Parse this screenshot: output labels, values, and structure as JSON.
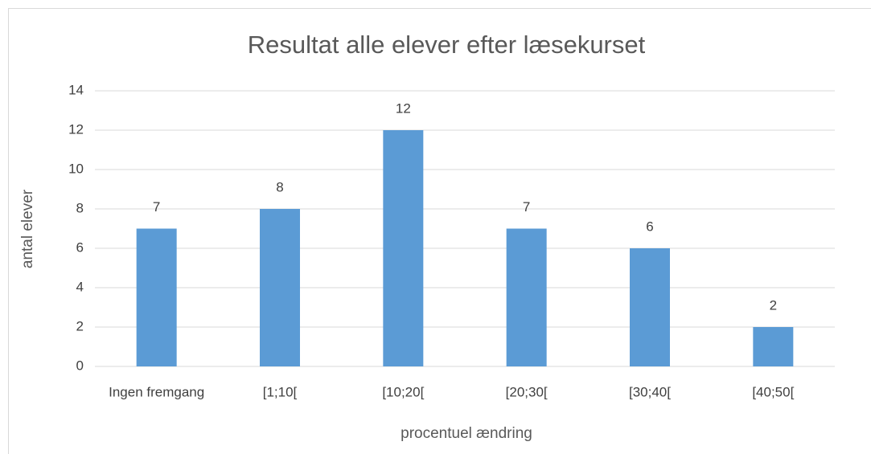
{
  "chart_data": {
    "type": "bar",
    "title": "Resultat alle elever efter læsekurset",
    "x_label": "procentuel ændring",
    "y_label": "antal elever",
    "categories": [
      "Ingen fremgang",
      "[1;10[",
      "[10;20[",
      "[20;30[",
      "[30;40[",
      "[40;50["
    ],
    "values": [
      7,
      8,
      12,
      7,
      6,
      2
    ],
    "color": "#5b9bd5",
    "ylim": [
      0,
      14
    ],
    "yticks": [
      0,
      2,
      4,
      6,
      8,
      10,
      12,
      14
    ],
    "grid": true,
    "data_labels": true
  }
}
